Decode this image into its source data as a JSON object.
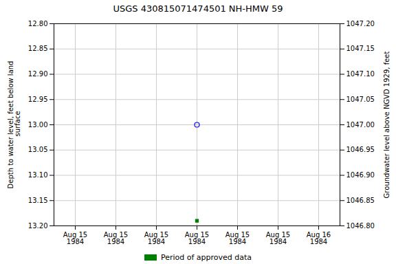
{
  "chart_data": {
    "type": "scatter",
    "title": "USGS 430815071474501 NH-HMW   59",
    "ylabel": "Depth to water level, feet below land\n surface",
    "y2label": "Groundwater level above NGVD 1929, feet",
    "categories": [
      "Aug 15\n1984",
      "Aug 15\n1984",
      "Aug 15\n1984",
      "Aug 15\n1984",
      "Aug 15\n1984",
      "Aug 15\n1984",
      "Aug 16\n1984"
    ],
    "ylim": [
      13.2,
      12.8
    ],
    "yticks": [
      {
        "value": 12.8,
        "label": "12.80"
      },
      12.85,
      {
        "value": 12.9,
        "label": "12.90"
      },
      12.95,
      {
        "value": 13.0,
        "label": "13.00"
      },
      13.05,
      {
        "value": 13.1,
        "label": "13.10"
      },
      13.15,
      {
        "value": 13.2,
        "label": "13.20"
      }
    ],
    "y2lim": [
      1046.8,
      1047.2
    ],
    "y2ticks": [
      {
        "value": 1046.8,
        "label": "1046.80"
      },
      1046.85,
      {
        "value": 1046.9,
        "label": "1046.90"
      },
      1046.95,
      {
        "value": 1047.0,
        "label": "1047.00"
      },
      1047.05,
      {
        "value": 1047.1,
        "label": "1047.10"
      },
      1047.15,
      {
        "value": 1047.2,
        "label": "1047.20"
      }
    ],
    "grid": true,
    "legend": "bottom",
    "series": [
      {
        "color": "blue",
        "marker": "circle",
        "values": [
          null,
          null,
          null,
          13.0,
          null,
          null,
          null
        ]
      },
      {
        "name": "Period of approved data",
        "color": "#008000",
        "marker": "square",
        "values": [
          null,
          null,
          null,
          13.19,
          null,
          null,
          null
        ]
      }
    ]
  }
}
